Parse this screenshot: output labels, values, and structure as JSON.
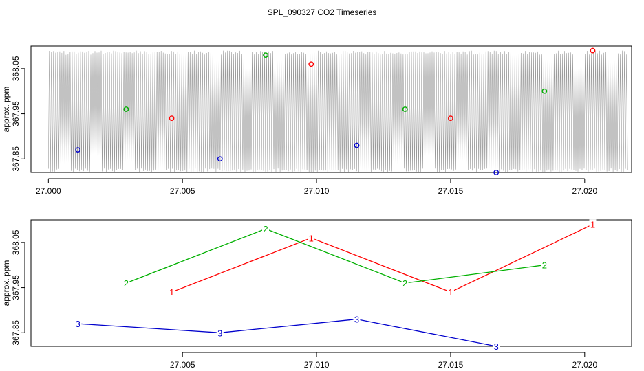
{
  "title": "SPL_090327  CO2 Timeseries",
  "colors": {
    "series1": "#ff0000",
    "series2": "#00b000",
    "series3": "#0000cc",
    "noise": "#9a9a9a",
    "axis": "#000000"
  },
  "chart_data": [
    {
      "type": "scatter",
      "title": "SPL_090327  CO2 Timeseries",
      "ylabel": "approx. ppm",
      "xlim": [
        26.99935,
        27.02175
      ],
      "ylim": [
        367.82,
        368.1
      ],
      "x_ticks": [
        "27.000",
        "27.005",
        "27.010",
        "27.015",
        "27.020"
      ],
      "y_ticks": [
        "367.85",
        "367.95",
        "368.05"
      ],
      "background_trace": {
        "x_range": [
          27.0,
          27.0216
        ],
        "y_range": [
          367.82,
          368.09
        ],
        "color": "#9a9a9a"
      },
      "series": [
        {
          "name": "1",
          "color": "#ff0000",
          "x": [
            27.0046,
            27.0098,
            27.015,
            27.0203
          ],
          "y": [
            367.94,
            368.06,
            367.94,
            368.09
          ]
        },
        {
          "name": "2",
          "color": "#00b000",
          "x": [
            27.0029,
            27.0081,
            27.0133,
            27.0185
          ],
          "y": [
            367.96,
            368.08,
            367.96,
            368.0
          ]
        },
        {
          "name": "3",
          "color": "#0000cc",
          "x": [
            27.0011,
            27.0064,
            27.0115,
            27.0167
          ],
          "y": [
            367.87,
            367.85,
            367.88,
            367.82
          ]
        }
      ]
    },
    {
      "type": "line",
      "ylabel": "approx. ppm",
      "xlim": [
        26.99935,
        27.02175
      ],
      "ylim": [
        367.82,
        368.1
      ],
      "x_ticks": [
        "27.005",
        "27.010",
        "27.015",
        "27.020"
      ],
      "y_ticks": [
        "367.85",
        "367.95",
        "368.05"
      ],
      "series": [
        {
          "name": "1",
          "color": "#ff0000",
          "x": [
            27.0046,
            27.0098,
            27.015,
            27.0203
          ],
          "y": [
            367.94,
            368.06,
            367.94,
            368.09
          ]
        },
        {
          "name": "2",
          "color": "#00b000",
          "x": [
            27.0029,
            27.0081,
            27.0133,
            27.0185
          ],
          "y": [
            367.96,
            368.08,
            367.96,
            368.0
          ]
        },
        {
          "name": "3",
          "color": "#0000cc",
          "x": [
            27.0011,
            27.0064,
            27.0115,
            27.0167
          ],
          "y": [
            367.87,
            367.85,
            367.88,
            367.82
          ]
        }
      ]
    }
  ]
}
